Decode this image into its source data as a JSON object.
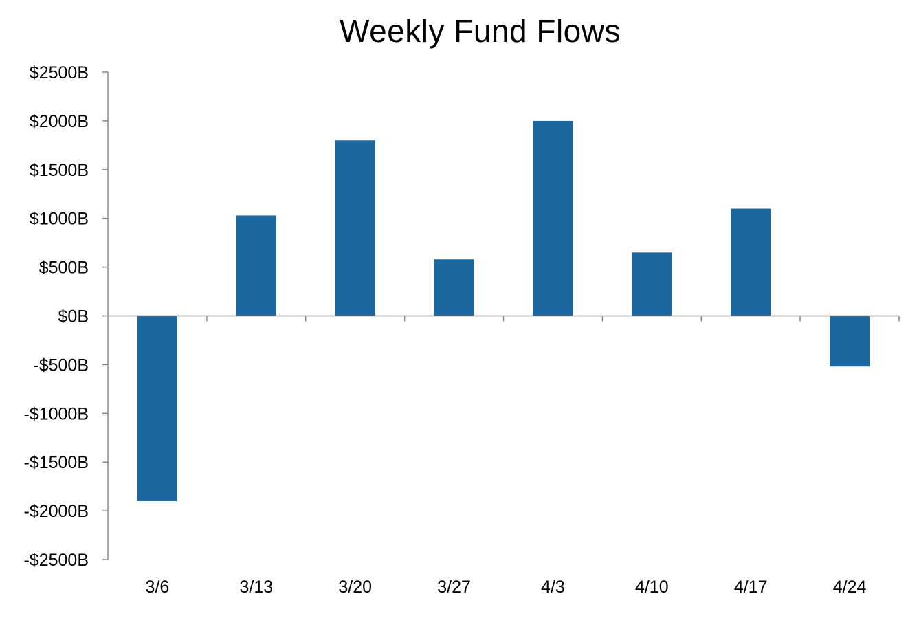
{
  "chart_data": {
    "type": "bar",
    "title": "Weekly Fund Flows",
    "xlabel": "",
    "ylabel": "",
    "categories": [
      "3/6",
      "3/13",
      "3/20",
      "3/27",
      "4/3",
      "4/10",
      "4/17",
      "4/24"
    ],
    "series": [
      {
        "values": [
          -1900,
          1030,
          1800,
          580,
          2000,
          650,
          1100,
          -520
        ]
      }
    ],
    "ylim": [
      -2500,
      2500
    ],
    "y_ticks": [
      2500,
      2000,
      1500,
      1000,
      500,
      0,
      -500,
      -1000,
      -1500,
      -2000,
      -2500
    ],
    "y_tick_labels": [
      "$2500B",
      "$2000B",
      "$1500B",
      "$1000B",
      "$500B",
      "$0B",
      "-$500B",
      "-$1000B",
      "-$1500B",
      "-$2000B",
      "-$2500B"
    ],
    "grid": false,
    "legend": "none",
    "colors": {
      "bar": "#1b67a0",
      "axis": "#888888",
      "text": "#000000"
    }
  }
}
